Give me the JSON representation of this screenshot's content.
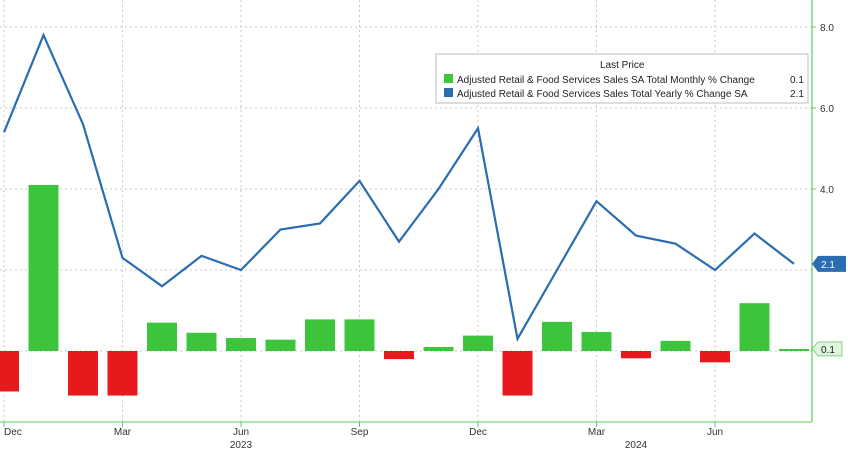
{
  "chart_data": {
    "type": "bar+line",
    "legend": {
      "title": "Last Price",
      "placement": "top-right",
      "entries": [
        {
          "label": "Adjusted Retail & Food Services Sales SA Total Monthly % Change",
          "value": "0.1",
          "color": "#3cc43c"
        },
        {
          "label": "Adjusted Retail & Food Services Sales Total Yearly % Change SA",
          "value": "2.1",
          "color": "#2a6db0"
        }
      ]
    },
    "x_ticks": [
      "Dec",
      "Mar",
      "Jun",
      "Sep",
      "Dec",
      "Mar",
      "Jun"
    ],
    "x_year_labels": [
      "2023",
      "2024"
    ],
    "y_ticks": [
      "8.0",
      "6.0",
      "4.0"
    ],
    "ylim": [
      -3.6,
      8.7
    ],
    "grid": true,
    "colors": {
      "positive": "#3cc43c",
      "negative": "#e8191c",
      "line": "#2a6db0",
      "axis": "#5fcf5f"
    },
    "monthly_change": [
      -1.0,
      4.1,
      -1.1,
      -1.1,
      0.7,
      0.45,
      0.32,
      0.28,
      0.78,
      0.78,
      -0.2,
      0.1,
      0.38,
      -1.1,
      0.72,
      0.47,
      -0.18,
      0.25,
      -0.28,
      1.18,
      0.05
    ],
    "yearly_change": [
      5.4,
      7.8,
      5.6,
      2.3,
      1.6,
      2.35,
      2.0,
      3.0,
      3.15,
      4.2,
      2.7,
      4.0,
      5.5,
      0.3,
      2.0,
      3.7,
      2.85,
      2.65,
      2.0,
      2.9,
      2.15
    ],
    "last_monthly_tag": "0.1",
    "last_yearly_tag": "2.1"
  }
}
